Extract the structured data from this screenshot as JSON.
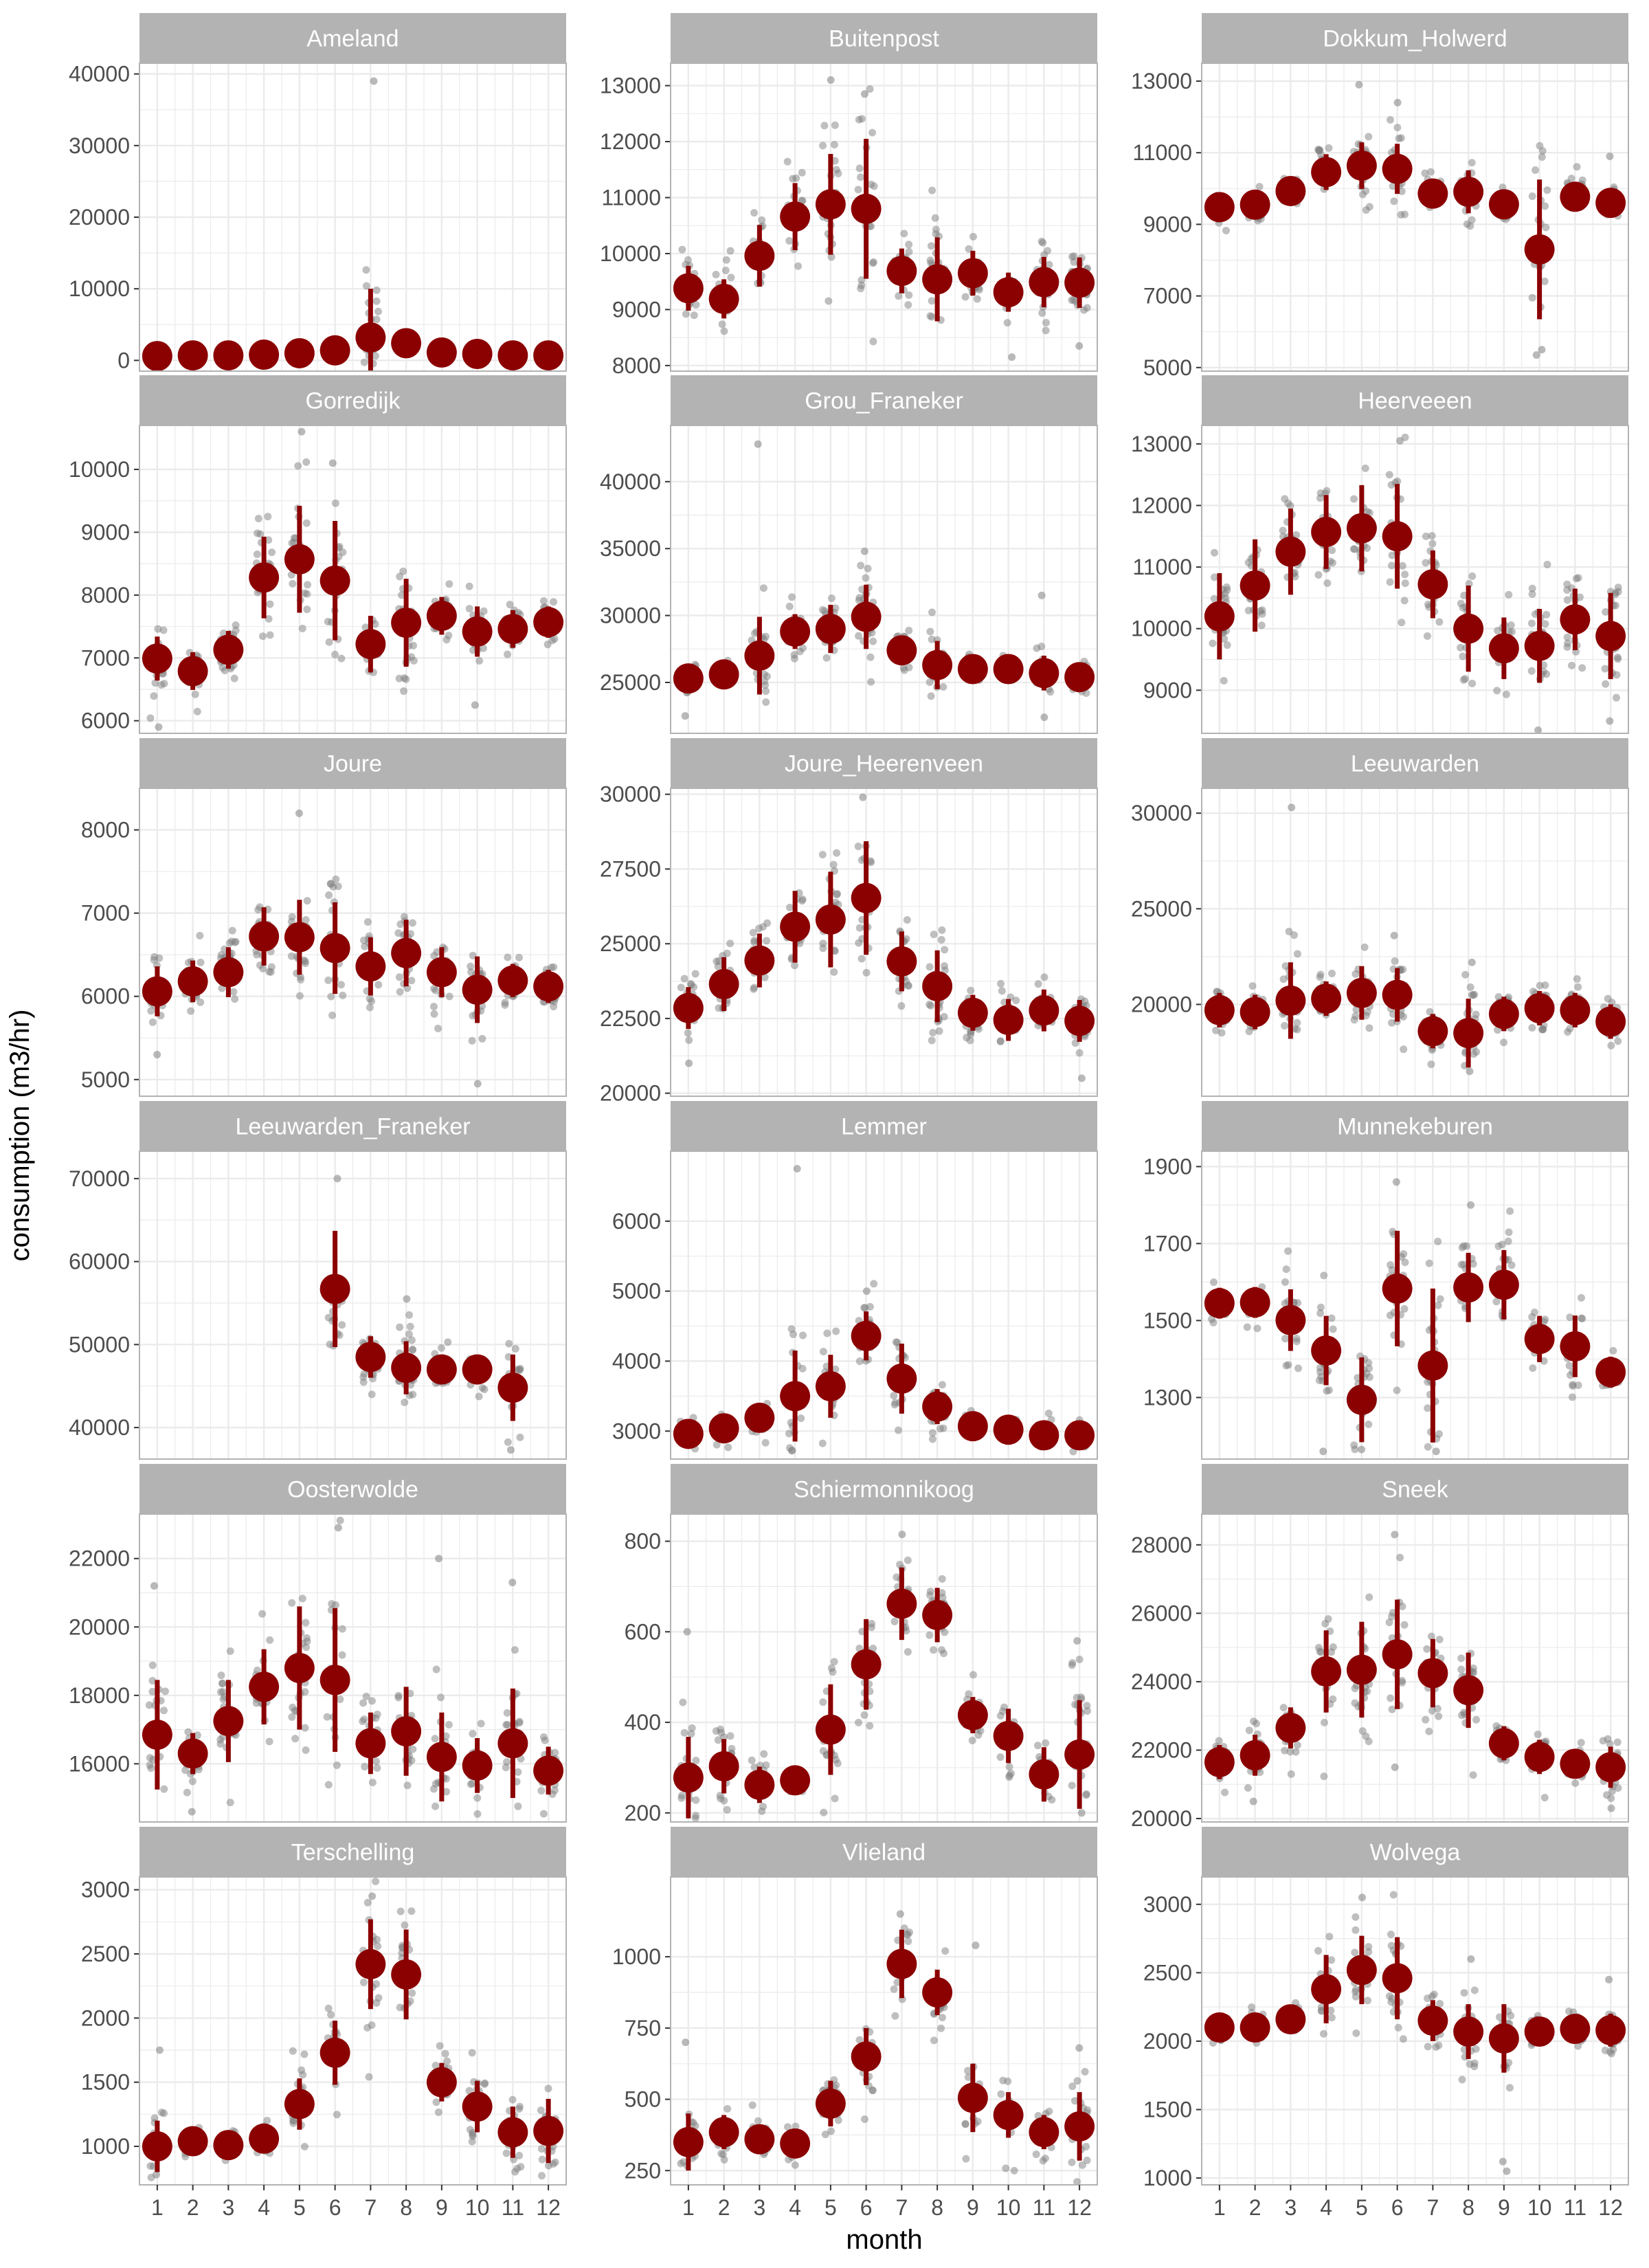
{
  "chart_data": {
    "type": "scatter",
    "title": "",
    "xlabel": "month",
    "ylabel": "consumption (m3/hr)",
    "months": [
      1,
      2,
      3,
      4,
      5,
      6,
      7,
      8,
      9,
      10,
      11,
      12
    ],
    "x_ticks": [
      "1",
      "2",
      "3",
      "4",
      "5",
      "6",
      "7",
      "8",
      "9",
      "10",
      "11",
      "12"
    ],
    "grid": true,
    "colors": {
      "mean": "#8b0000",
      "observations": "#808080",
      "strip": "#b3b3b3",
      "grid": "#ebebeb",
      "panel_border": "#b3b3b3",
      "tick_label": "#4d4d4d"
    },
    "panels": [
      {
        "name": "Ameland",
        "ylim": [
          -1500,
          41500
        ],
        "yticks": [
          0,
          10000,
          20000,
          30000,
          40000
        ],
        "mean": [
          600,
          700,
          700,
          800,
          1000,
          1400,
          3200,
          2400,
          1100,
          900,
          700,
          700
        ],
        "err": [
          150,
          150,
          150,
          150,
          250,
          500,
          6800,
          600,
          250,
          200,
          150,
          150
        ],
        "obs": [
          [
            7,
            39000
          ]
        ]
      },
      {
        "name": "Buitenpost",
        "ylim": [
          7900,
          13400
        ],
        "yticks": [
          8000,
          9000,
          10000,
          11000,
          12000,
          13000
        ],
        "mean": [
          9380,
          9190,
          9960,
          10660,
          10880,
          10800,
          9690,
          9540,
          9650,
          9310,
          9490,
          9480
        ],
        "err": [
          400,
          350,
          550,
          600,
          900,
          1250,
          400,
          750,
          400,
          350,
          450,
          450
        ],
        "obs": [
          [
            5,
            13100
          ],
          [
            6,
            12850
          ],
          [
            10,
            8150
          ],
          [
            12,
            8350
          ]
        ]
      },
      {
        "name": "Dokkum_Holwerd",
        "ylim": [
          4900,
          13500
        ],
        "yticks": [
          5000,
          7000,
          9000,
          11000,
          13000
        ],
        "mean": [
          9480,
          9550,
          9930,
          10460,
          10640,
          10550,
          9860,
          9910,
          9560,
          8300,
          9770,
          9600
        ],
        "err": [
          250,
          300,
          300,
          500,
          650,
          700,
          350,
          600,
          300,
          1950,
          400,
          300
        ],
        "obs": [
          [
            5,
            12900
          ],
          [
            6,
            12400
          ],
          [
            10,
            5350
          ],
          [
            10,
            5500
          ],
          [
            12,
            10900
          ]
        ]
      },
      {
        "name": "Gorredijk",
        "ylim": [
          5800,
          10700
        ],
        "yticks": [
          6000,
          7000,
          8000,
          9000,
          10000
        ],
        "mean": [
          6990,
          6790,
          7130,
          8280,
          8570,
          8230,
          7220,
          7560,
          7670,
          7420,
          7460,
          7570
        ],
        "err": [
          350,
          300,
          300,
          650,
          850,
          950,
          450,
          700,
          300,
          400,
          300,
          250
        ],
        "obs": [
          [
            1,
            5900
          ],
          [
            5,
            10600
          ],
          [
            6,
            10100
          ],
          [
            10,
            6250
          ]
        ]
      },
      {
        "name": "Grou_Franeker",
        "ylim": [
          21200,
          44200
        ],
        "yticks": [
          25000,
          30000,
          35000,
          40000
        ],
        "mean": [
          25300,
          25600,
          27000,
          28800,
          29000,
          29900,
          27400,
          26300,
          26000,
          26000,
          25700,
          25400
        ],
        "err": [
          600,
          500,
          2900,
          1300,
          1800,
          2400,
          1100,
          1800,
          600,
          700,
          1300,
          900
        ],
        "obs": [
          [
            3,
            42800
          ],
          [
            1,
            22500
          ],
          [
            6,
            34800
          ],
          [
            11,
            22400
          ],
          [
            11,
            31500
          ]
        ]
      },
      {
        "name": "Heerveeen",
        "ylim": [
          8300,
          13300
        ],
        "yticks": [
          9000,
          10000,
          11000,
          12000,
          13000
        ],
        "mean": [
          10200,
          10700,
          11250,
          11570,
          11630,
          11500,
          10720,
          10000,
          9680,
          9720,
          10150,
          9880
        ],
        "err": [
          700,
          750,
          700,
          600,
          700,
          850,
          550,
          700,
          500,
          600,
          500,
          700
        ],
        "obs": [
          [
            6,
            13050
          ],
          [
            10,
            8350
          ],
          [
            12,
            8500
          ]
        ]
      },
      {
        "name": "Joure",
        "ylim": [
          4800,
          8500
        ],
        "yticks": [
          5000,
          6000,
          7000,
          8000
        ],
        "mean": [
          6060,
          6180,
          6290,
          6720,
          6710,
          6580,
          6360,
          6520,
          6290,
          6080,
          6190,
          6120
        ],
        "err": [
          300,
          250,
          300,
          350,
          450,
          550,
          350,
          400,
          300,
          400,
          200,
          200
        ],
        "obs": [
          [
            5,
            8200
          ],
          [
            10,
            4950
          ],
          [
            1,
            5300
          ]
        ]
      },
      {
        "name": "Joure_Heerenveen",
        "ylim": [
          19900,
          30200
        ],
        "yticks": [
          20000,
          22500,
          25000,
          27500,
          30000
        ],
        "mean": [
          22850,
          23650,
          24440,
          25570,
          25810,
          26530,
          24410,
          23580,
          22690,
          22450,
          22770,
          22420
        ],
        "err": [
          700,
          900,
          900,
          1200,
          1600,
          1900,
          1000,
          1200,
          600,
          700,
          700,
          700
        ],
        "obs": [
          [
            6,
            29900
          ],
          [
            12,
            20500
          ],
          [
            1,
            21000
          ]
        ]
      },
      {
        "name": "Leeuwarden",
        "ylim": [
          15200,
          31300
        ],
        "yticks": [
          20000,
          25000,
          30000
        ],
        "mean": [
          19700,
          19600,
          20200,
          20300,
          20600,
          20500,
          18600,
          18500,
          19500,
          19800,
          19700,
          19100
        ],
        "err": [
          900,
          900,
          2000,
          900,
          1400,
          1400,
          900,
          1800,
          900,
          900,
          900,
          900
        ],
        "obs": [
          [
            3,
            30300
          ],
          [
            6,
            23600
          ],
          [
            8,
            16500
          ],
          [
            8,
            22200
          ]
        ]
      },
      {
        "name": "Leeuwarden_Franeker",
        "ylim": [
          36200,
          73300
        ],
        "yticks": [
          40000,
          50000,
          60000,
          70000
        ],
        "mean": [
          null,
          null,
          null,
          null,
          null,
          56700,
          48500,
          47200,
          47000,
          47000,
          44800,
          null
        ],
        "err": [
          null,
          null,
          null,
          null,
          null,
          7000,
          2500,
          3200,
          1800,
          1800,
          4000,
          null
        ],
        "obs": [
          [
            6,
            70000
          ],
          [
            11,
            37300
          ],
          [
            8,
            55500
          ]
        ]
      },
      {
        "name": "Lemmer",
        "ylim": [
          2600,
          7000
        ],
        "yticks": [
          3000,
          4000,
          5000,
          6000
        ],
        "mean": [
          2960,
          3040,
          3190,
          3500,
          3640,
          4360,
          3750,
          3350,
          3070,
          3020,
          2940,
          2940
        ],
        "err": [
          120,
          150,
          200,
          650,
          450,
          350,
          500,
          250,
          120,
          120,
          120,
          120
        ],
        "obs": [
          [
            4,
            6750
          ],
          [
            6,
            5000
          ]
        ]
      },
      {
        "name": "Munnekeburen",
        "ylim": [
          1140,
          1940
        ],
        "yticks": [
          1300,
          1500,
          1700,
          1900
        ],
        "mean": [
          1545,
          1547,
          1501,
          1422,
          1294,
          1583,
          1383,
          1586,
          1593,
          1452,
          1433,
          1366
        ],
        "err": [
          40,
          40,
          80,
          90,
          110,
          150,
          200,
          90,
          90,
          60,
          80,
          40
        ],
        "obs": [
          [
            6,
            1860
          ],
          [
            8,
            1800
          ],
          [
            7,
            1160
          ],
          [
            4,
            1160
          ],
          [
            5,
            1165
          ]
        ]
      },
      {
        "name": "Oosterwolde",
        "ylim": [
          14300,
          23300
        ],
        "yticks": [
          16000,
          18000,
          20000,
          22000
        ],
        "mean": [
          16850,
          16300,
          17250,
          18250,
          18800,
          18450,
          16600,
          16950,
          16200,
          15950,
          16600,
          15800
        ],
        "err": [
          1600,
          600,
          1200,
          1100,
          1800,
          2100,
          900,
          1300,
          1300,
          800,
          1600,
          700
        ],
        "obs": [
          [
            6,
            22900
          ],
          [
            9,
            22000
          ],
          [
            1,
            21200
          ],
          [
            11,
            21300
          ],
          [
            2,
            14600
          ]
        ]
      },
      {
        "name": "Schiermonnikoog",
        "ylim": [
          180,
          860
        ],
        "yticks": [
          200,
          400,
          600,
          800
        ],
        "mean": [
          278,
          303,
          262,
          272,
          384,
          528,
          662,
          637,
          416,
          370,
          285,
          329
        ],
        "err": [
          90,
          60,
          40,
          30,
          100,
          100,
          80,
          60,
          40,
          60,
          60,
          120
        ],
        "obs": [
          [
            7,
            815
          ],
          [
            1,
            600
          ],
          [
            12,
            580
          ],
          [
            12,
            200
          ]
        ]
      },
      {
        "name": "Sneek",
        "ylim": [
          19900,
          28900
        ],
        "yticks": [
          20000,
          22000,
          24000,
          26000,
          28000
        ],
        "mean": [
          21650,
          21850,
          22650,
          24300,
          24350,
          24800,
          24250,
          23750,
          22200,
          21800,
          21600,
          21500
        ],
        "err": [
          500,
          600,
          600,
          1200,
          1400,
          1600,
          1000,
          1100,
          500,
          500,
          400,
          600
        ],
        "obs": [
          [
            6,
            28300
          ],
          [
            12,
            20300
          ],
          [
            2,
            20500
          ],
          [
            6,
            21500
          ]
        ]
      },
      {
        "name": "Terschelling",
        "ylim": [
          700,
          3100
        ],
        "yticks": [
          1000,
          1500,
          2000,
          2500,
          3000
        ],
        "mean": [
          1000,
          1040,
          1010,
          1060,
          1330,
          1730,
          2420,
          2340,
          1500,
          1310,
          1110,
          1120
        ],
        "err": [
          200,
          100,
          60,
          80,
          200,
          250,
          350,
          350,
          150,
          200,
          200,
          250
        ],
        "obs": [
          [
            7,
            2950
          ],
          [
            1,
            1750
          ],
          [
            1,
            780
          ],
          [
            12,
            850
          ]
        ]
      },
      {
        "name": "Vlieland",
        "ylim": [
          200,
          1280
        ],
        "yticks": [
          250,
          500,
          750,
          1000
        ],
        "mean": [
          350,
          385,
          360,
          345,
          485,
          650,
          975,
          875,
          505,
          445,
          385,
          405
        ],
        "err": [
          100,
          60,
          50,
          40,
          80,
          100,
          120,
          80,
          120,
          80,
          60,
          120
        ],
        "obs": [
          [
            7,
            1150
          ],
          [
            1,
            700
          ],
          [
            12,
            680
          ],
          [
            9,
            1040
          ]
        ]
      },
      {
        "name": "Wolvega",
        "ylim": [
          950,
          3200
        ],
        "yticks": [
          1000,
          1500,
          2000,
          2500,
          3000
        ],
        "mean": [
          2100,
          2100,
          2160,
          2380,
          2520,
          2460,
          2150,
          2070,
          2020,
          2070,
          2090,
          2080
        ],
        "err": [
          80,
          80,
          80,
          250,
          250,
          300,
          150,
          200,
          250,
          100,
          80,
          120
        ],
        "obs": [
          [
            9,
            1050
          ],
          [
            9,
            1120
          ],
          [
            5,
            3050
          ],
          [
            12,
            2450
          ],
          [
            8,
            2600
          ]
        ]
      }
    ]
  }
}
